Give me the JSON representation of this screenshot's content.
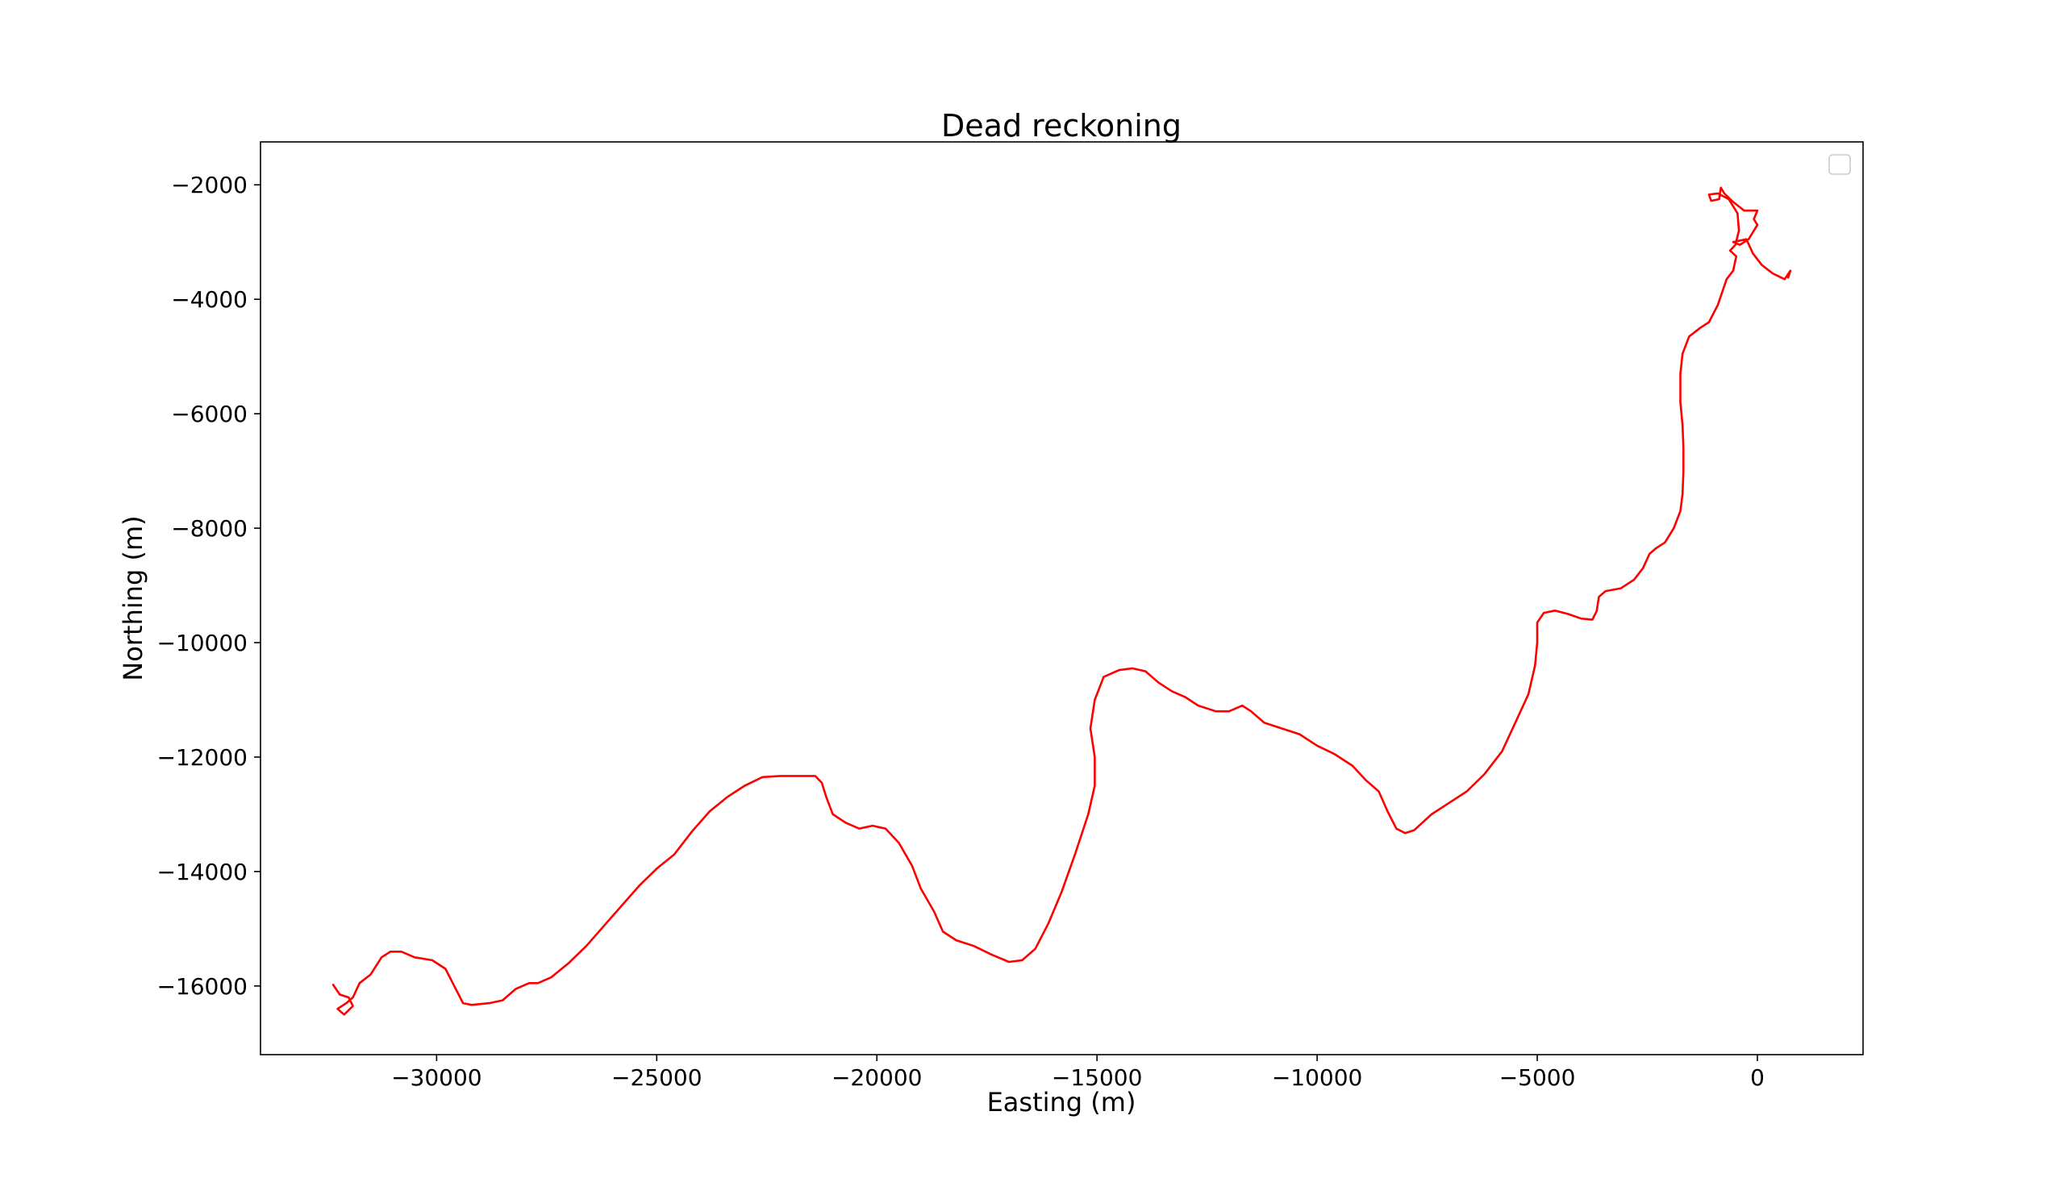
{
  "chart_data": {
    "type": "line",
    "title": "Dead reckoning",
    "xlabel": "Easting (m)",
    "ylabel": "Northing (m)",
    "xlim": [
      -34000,
      2400
    ],
    "ylim": [
      -17200,
      -1250
    ],
    "x_ticks": [
      -30000,
      -25000,
      -20000,
      -15000,
      -10000,
      -5000,
      0
    ],
    "x_tick_labels": [
      "−30000",
      "−25000",
      "−20000",
      "−15000",
      "−10000",
      "−5000",
      "0"
    ],
    "y_ticks": [
      -16000,
      -14000,
      -12000,
      -10000,
      -8000,
      -6000,
      -4000,
      -2000
    ],
    "y_tick_labels": [
      "−16000",
      "−14000",
      "−12000",
      "−10000",
      "−8000",
      "−6000",
      "−4000",
      "−2000"
    ],
    "grid": false,
    "legend": {
      "placement": "top-right",
      "entries": []
    },
    "series": [
      {
        "color": "#ff0000",
        "points": [
          [
            -32350,
            -15980
          ],
          [
            -32200,
            -16150
          ],
          [
            -32000,
            -16200
          ],
          [
            -31900,
            -16350
          ],
          [
            -32100,
            -16500
          ],
          [
            -32250,
            -16400
          ],
          [
            -32050,
            -16300
          ],
          [
            -31900,
            -16200
          ],
          [
            -31750,
            -15950
          ],
          [
            -31500,
            -15800
          ],
          [
            -31250,
            -15500
          ],
          [
            -31050,
            -15400
          ],
          [
            -30800,
            -15400
          ],
          [
            -30500,
            -15500
          ],
          [
            -30100,
            -15550
          ],
          [
            -29800,
            -15700
          ],
          [
            -29600,
            -16000
          ],
          [
            -29400,
            -16300
          ],
          [
            -29200,
            -16330
          ],
          [
            -28800,
            -16300
          ],
          [
            -28500,
            -16250
          ],
          [
            -28200,
            -16050
          ],
          [
            -27900,
            -15950
          ],
          [
            -27700,
            -15950
          ],
          [
            -27400,
            -15850
          ],
          [
            -27000,
            -15600
          ],
          [
            -26600,
            -15300
          ],
          [
            -26200,
            -14950
          ],
          [
            -25800,
            -14600
          ],
          [
            -25400,
            -14250
          ],
          [
            -25000,
            -13950
          ],
          [
            -24600,
            -13700
          ],
          [
            -24200,
            -13300
          ],
          [
            -23800,
            -12950
          ],
          [
            -23400,
            -12700
          ],
          [
            -23000,
            -12500
          ],
          [
            -22600,
            -12350
          ],
          [
            -22200,
            -12330
          ],
          [
            -21800,
            -12330
          ],
          [
            -21400,
            -12330
          ],
          [
            -21250,
            -12450
          ],
          [
            -21150,
            -12700
          ],
          [
            -21000,
            -13000
          ],
          [
            -20700,
            -13150
          ],
          [
            -20400,
            -13250
          ],
          [
            -20100,
            -13200
          ],
          [
            -19800,
            -13250
          ],
          [
            -19500,
            -13500
          ],
          [
            -19200,
            -13900
          ],
          [
            -19000,
            -14300
          ],
          [
            -18700,
            -14700
          ],
          [
            -18500,
            -15050
          ],
          [
            -18200,
            -15200
          ],
          [
            -17800,
            -15300
          ],
          [
            -17400,
            -15450
          ],
          [
            -17000,
            -15580
          ],
          [
            -16700,
            -15550
          ],
          [
            -16400,
            -15350
          ],
          [
            -16100,
            -14900
          ],
          [
            -15800,
            -14350
          ],
          [
            -15500,
            -13700
          ],
          [
            -15200,
            -13000
          ],
          [
            -15050,
            -12500
          ],
          [
            -15050,
            -12000
          ],
          [
            -15150,
            -11500
          ],
          [
            -15050,
            -11000
          ],
          [
            -14850,
            -10600
          ],
          [
            -14500,
            -10480
          ],
          [
            -14200,
            -10450
          ],
          [
            -13900,
            -10500
          ],
          [
            -13600,
            -10700
          ],
          [
            -13300,
            -10850
          ],
          [
            -13000,
            -10950
          ],
          [
            -12700,
            -11100
          ],
          [
            -12300,
            -11200
          ],
          [
            -12000,
            -11200
          ],
          [
            -11700,
            -11100
          ],
          [
            -11500,
            -11200
          ],
          [
            -11200,
            -11400
          ],
          [
            -10800,
            -11500
          ],
          [
            -10400,
            -11600
          ],
          [
            -10000,
            -11800
          ],
          [
            -9600,
            -11950
          ],
          [
            -9200,
            -12150
          ],
          [
            -8900,
            -12400
          ],
          [
            -8600,
            -12600
          ],
          [
            -8400,
            -12950
          ],
          [
            -8200,
            -13250
          ],
          [
            -8000,
            -13330
          ],
          [
            -7800,
            -13280
          ],
          [
            -7400,
            -13000
          ],
          [
            -7000,
            -12800
          ],
          [
            -6600,
            -12600
          ],
          [
            -6200,
            -12300
          ],
          [
            -5800,
            -11900
          ],
          [
            -5500,
            -11400
          ],
          [
            -5200,
            -10900
          ],
          [
            -5050,
            -10400
          ],
          [
            -5000,
            -10000
          ],
          [
            -5000,
            -9650
          ],
          [
            -4850,
            -9480
          ],
          [
            -4600,
            -9440
          ],
          [
            -4300,
            -9500
          ],
          [
            -4000,
            -9580
          ],
          [
            -3750,
            -9600
          ],
          [
            -3650,
            -9450
          ],
          [
            -3600,
            -9200
          ],
          [
            -3450,
            -9100
          ],
          [
            -3100,
            -9050
          ],
          [
            -2800,
            -8900
          ],
          [
            -2600,
            -8700
          ],
          [
            -2450,
            -8450
          ],
          [
            -2300,
            -8350
          ],
          [
            -2100,
            -8250
          ],
          [
            -1900,
            -8000
          ],
          [
            -1750,
            -7700
          ],
          [
            -1700,
            -7400
          ],
          [
            -1680,
            -7000
          ],
          [
            -1680,
            -6600
          ],
          [
            -1700,
            -6200
          ],
          [
            -1750,
            -5800
          ],
          [
            -1750,
            -5300
          ],
          [
            -1700,
            -4950
          ],
          [
            -1550,
            -4650
          ],
          [
            -1300,
            -4500
          ],
          [
            -1100,
            -4400
          ],
          [
            -900,
            -4100
          ],
          [
            -700,
            -3650
          ],
          [
            -550,
            -3500
          ],
          [
            -480,
            -3250
          ],
          [
            -620,
            -3150
          ],
          [
            -500,
            -3050
          ],
          [
            -420,
            -2800
          ],
          [
            -450,
            -2500
          ],
          [
            -650,
            -2250
          ],
          [
            -900,
            -2150
          ],
          [
            -1100,
            -2170
          ],
          [
            -1050,
            -2280
          ],
          [
            -870,
            -2250
          ],
          [
            -830,
            -2050
          ],
          [
            -750,
            -2150
          ],
          [
            -550,
            -2300
          ],
          [
            -300,
            -2450
          ],
          [
            0,
            -2450
          ],
          [
            -80,
            -2600
          ],
          [
            0,
            -2700
          ],
          [
            -200,
            -2950
          ],
          [
            -400,
            -3050
          ],
          [
            -550,
            -3000
          ],
          [
            -250,
            -2950
          ],
          [
            -100,
            -3200
          ],
          [
            100,
            -3400
          ],
          [
            350,
            -3550
          ],
          [
            620,
            -3650
          ],
          [
            750,
            -3500
          ],
          [
            700,
            -3620
          ]
        ]
      }
    ]
  }
}
